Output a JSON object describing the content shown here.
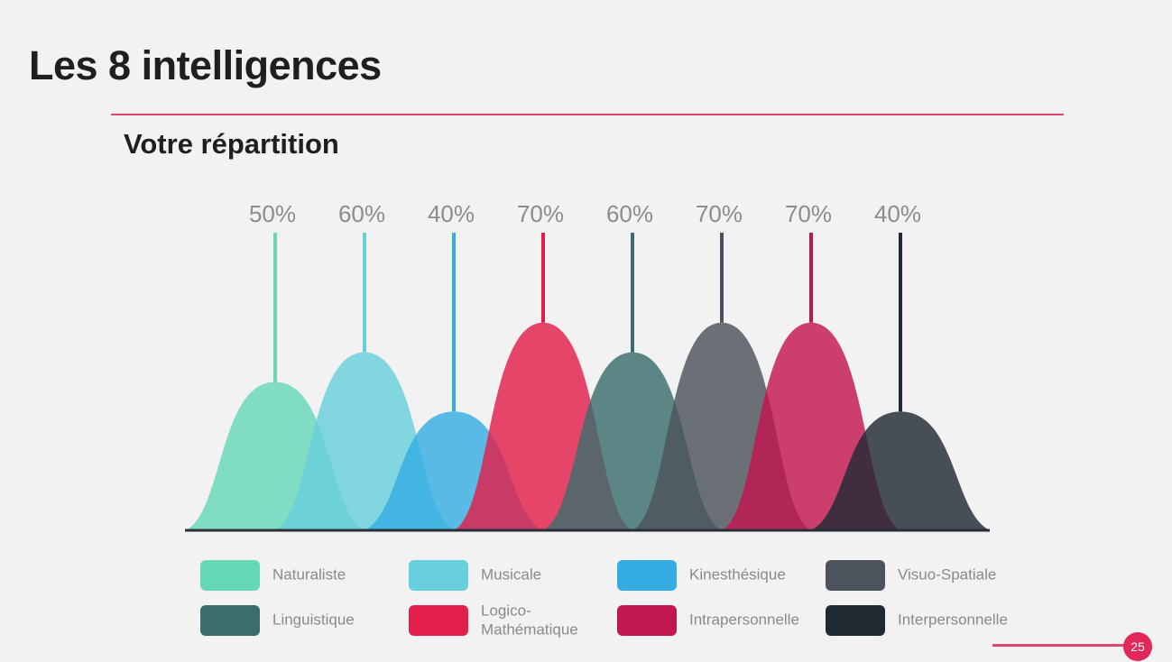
{
  "slide": {
    "title": "Les 8 intelligences",
    "subtitle": "Votre répartition",
    "page_number": "25",
    "accent_color": "#e2476c"
  },
  "chart_data": {
    "type": "area",
    "title": "",
    "ylim": [
      0,
      100
    ],
    "unit": "%",
    "baseline_color": "#2b3038",
    "series": [
      {
        "name": "Naturaliste",
        "value": 50,
        "label": "50%",
        "color": "#66d8b8"
      },
      {
        "name": "Musicale",
        "value": 60,
        "label": "60%",
        "color": "#68cfdc"
      },
      {
        "name": "Kinesthésique",
        "value": 40,
        "label": "40%",
        "color": "#36ade2"
      },
      {
        "name": "Logico-\nMathématique",
        "value": 70,
        "label": "70%",
        "color": "#e21f4a"
      },
      {
        "name": "Linguistique",
        "value": 60,
        "label": "60%",
        "color": "#3b6d6d"
      },
      {
        "name": "Visuo-Spatiale",
        "value": 70,
        "label": "70%",
        "color": "#4d535c"
      },
      {
        "name": "Intrapersonnelle",
        "value": 70,
        "label": "70%",
        "color": "#c21650"
      },
      {
        "name": "Interpersonnelle",
        "value": 40,
        "label": "40%",
        "color": "#212933"
      }
    ]
  },
  "legend": [
    {
      "label": "Naturaliste",
      "color": "#66d8b8"
    },
    {
      "label": "Musicale",
      "color": "#68cfdc"
    },
    {
      "label": "Kinesthésique",
      "color": "#36ade2"
    },
    {
      "label": "Visuo-Spatiale",
      "color": "#4d535c"
    },
    {
      "label": "Linguistique",
      "color": "#3b6d6d"
    },
    {
      "label": "Logico-\nMathématique",
      "color": "#e21f4a"
    },
    {
      "label": "Intrapersonnelle",
      "color": "#c21650"
    },
    {
      "label": "Interpersonnelle",
      "color": "#212933"
    }
  ]
}
